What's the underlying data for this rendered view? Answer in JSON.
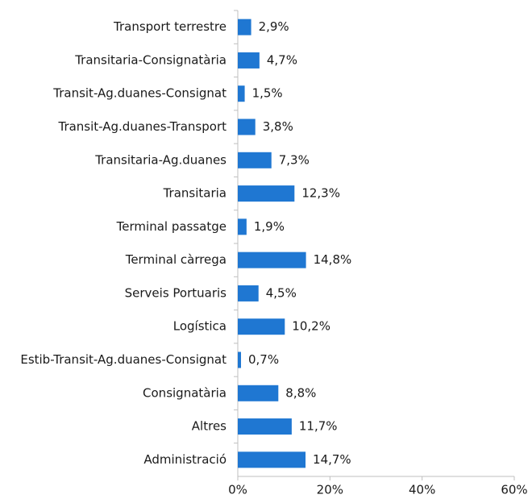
{
  "chart_data": {
    "type": "hbar",
    "categories": [
      "Transport terrestre",
      "Transitaria-Consignatària",
      "Transit-Ag.duanes-Consignat",
      "Transit-Ag.duanes-Transport",
      "Transitaria-Ag.duanes",
      "Transitaria",
      "Terminal passatge",
      "Terminal càrrega",
      "Serveis Portuaris",
      "Logística",
      "Estib-Transit-Ag.duanes-Consignat",
      "Consignatària",
      "Altres",
      "Administració"
    ],
    "values": [
      2.9,
      4.7,
      1.5,
      3.8,
      7.3,
      12.3,
      1.9,
      14.8,
      4.5,
      10.2,
      0.7,
      8.8,
      11.7,
      14.7
    ],
    "value_labels": [
      "2,9%",
      "4,7%",
      "1,5%",
      "3,8%",
      "7,3%",
      "12,3%",
      "1,9%",
      "14,8%",
      "4,5%",
      "10,2%",
      "0,7%",
      "8,8%",
      "11,7%",
      "14,7%"
    ],
    "color": "#1f77d2",
    "xlim": [
      0,
      60
    ],
    "xticks": [
      {
        "value": 0,
        "label": "0%"
      },
      {
        "value": 20,
        "label": "20%"
      },
      {
        "value": 40,
        "label": "40%"
      },
      {
        "value": 60,
        "label": "60%"
      }
    ],
    "grid": false
  }
}
